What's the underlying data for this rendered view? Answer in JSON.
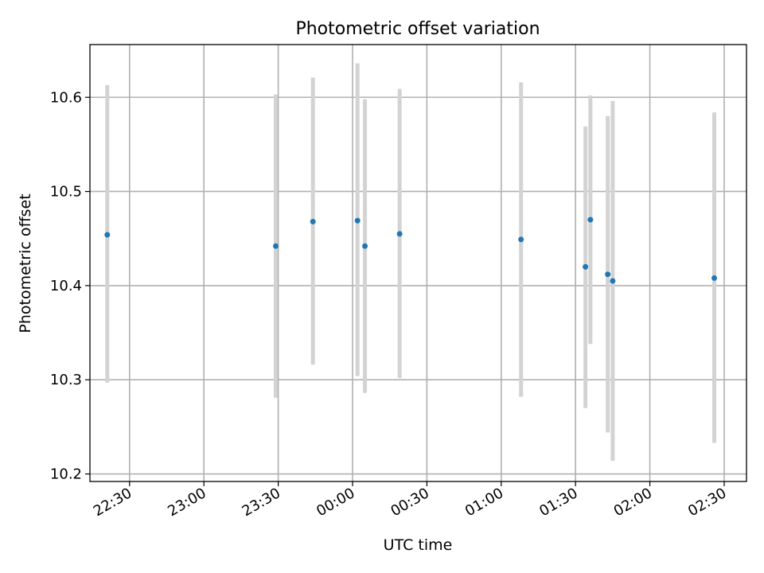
{
  "chart_data": {
    "type": "scatter",
    "title": "Photometric offset variation",
    "xlabel": "UTC time",
    "ylabel": "Photometric offset",
    "xlim": [
      "22:14",
      "02:39"
    ],
    "ylim": [
      10.192,
      10.656
    ],
    "grid": true,
    "x_ticks": [
      "22:30",
      "23:00",
      "23:30",
      "00:00",
      "00:30",
      "01:00",
      "01:30",
      "02:00",
      "02:30"
    ],
    "y_ticks": [
      "10.2",
      "10.3",
      "10.4",
      "10.5",
      "10.6"
    ],
    "series": [
      {
        "colors": {
          "point": "#1f77b4",
          "errorbar": "#d3d3d3"
        },
        "points": [
          {
            "x": "22:21",
            "y": 10.454,
            "ylow": 10.297,
            "yhigh": 10.613
          },
          {
            "x": "23:29",
            "y": 10.442,
            "ylow": 10.281,
            "yhigh": 10.603
          },
          {
            "x": "23:44",
            "y": 10.468,
            "ylow": 10.316,
            "yhigh": 10.621
          },
          {
            "x": "00:02",
            "y": 10.469,
            "ylow": 10.304,
            "yhigh": 10.636
          },
          {
            "x": "00:05",
            "y": 10.442,
            "ylow": 10.286,
            "yhigh": 10.598
          },
          {
            "x": "00:19",
            "y": 10.455,
            "ylow": 10.302,
            "yhigh": 10.609
          },
          {
            "x": "01:08",
            "y": 10.449,
            "ylow": 10.282,
            "yhigh": 10.616
          },
          {
            "x": "01:34",
            "y": 10.42,
            "ylow": 10.27,
            "yhigh": 10.569
          },
          {
            "x": "01:36",
            "y": 10.47,
            "ylow": 10.338,
            "yhigh": 10.602
          },
          {
            "x": "01:43",
            "y": 10.412,
            "ylow": 10.244,
            "yhigh": 10.58
          },
          {
            "x": "01:45",
            "y": 10.405,
            "ylow": 10.214,
            "yhigh": 10.596
          },
          {
            "x": "02:26",
            "y": 10.408,
            "ylow": 10.233,
            "yhigh": 10.584
          }
        ]
      }
    ]
  }
}
